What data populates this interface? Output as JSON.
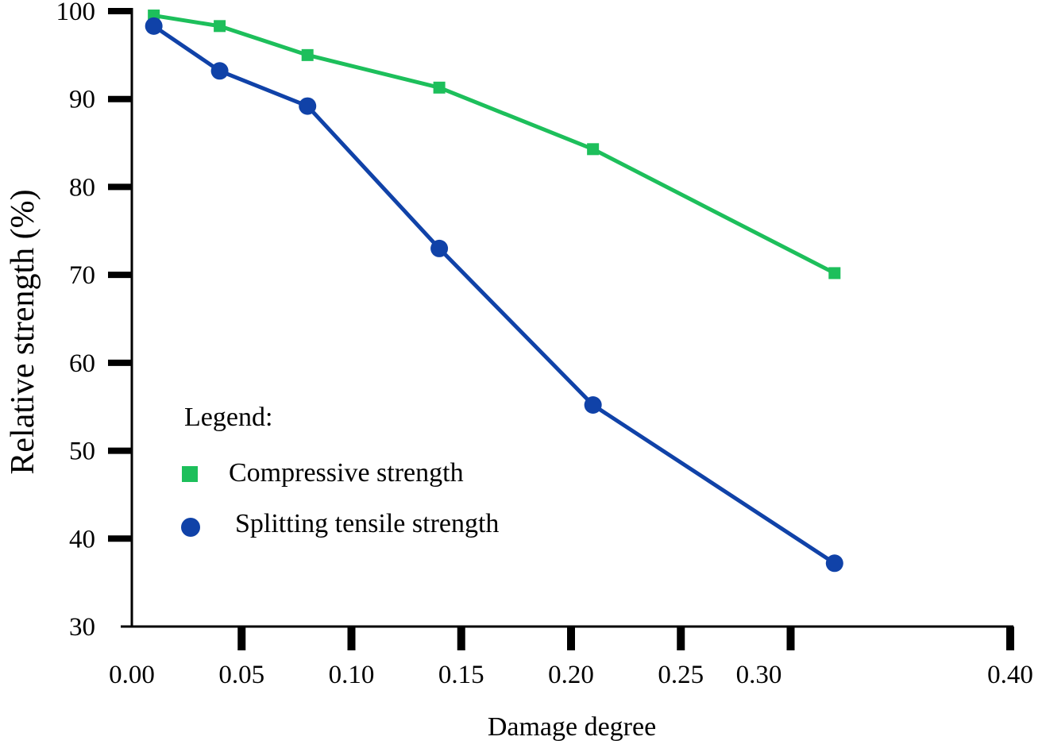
{
  "chart_data": {
    "type": "line",
    "title": "",
    "xlabel": "Damage degree",
    "ylabel": "Relative strength (%)",
    "xlim": [
      0.0,
      0.4
    ],
    "ylim": [
      30,
      100
    ],
    "x_ticks": [
      0.0,
      0.05,
      0.1,
      0.15,
      0.2,
      0.25,
      0.3,
      0.4
    ],
    "x_tick_labels": [
      "0.00",
      "0.05",
      "0.10",
      "0.15",
      "0.20",
      "0.25",
      "0.30",
      "0.40"
    ],
    "y_ticks": [
      30,
      40,
      50,
      60,
      70,
      80,
      90,
      100
    ],
    "y_tick_labels": [
      "30",
      "40",
      "50",
      "60",
      "70",
      "80",
      "90",
      "100"
    ],
    "grid": false,
    "legend": {
      "title": "Legend:",
      "position": "lower-left",
      "entries": [
        "Compressive strength",
        "Splitting tensile strength"
      ]
    },
    "series": [
      {
        "name": "Compressive strength",
        "marker": "square",
        "color": "#1dbf5b",
        "x": [
          0.01,
          0.04,
          0.08,
          0.14,
          0.21,
          0.32
        ],
        "values": [
          99.5,
          98.3,
          95.0,
          91.3,
          84.3,
          70.2
        ]
      },
      {
        "name": "Splitting tensile strength",
        "marker": "circle",
        "color": "#1042a8",
        "x": [
          0.01,
          0.04,
          0.08,
          0.14,
          0.21,
          0.32
        ],
        "values": [
          98.3,
          93.2,
          89.2,
          73.0,
          55.2,
          37.2
        ]
      }
    ]
  }
}
